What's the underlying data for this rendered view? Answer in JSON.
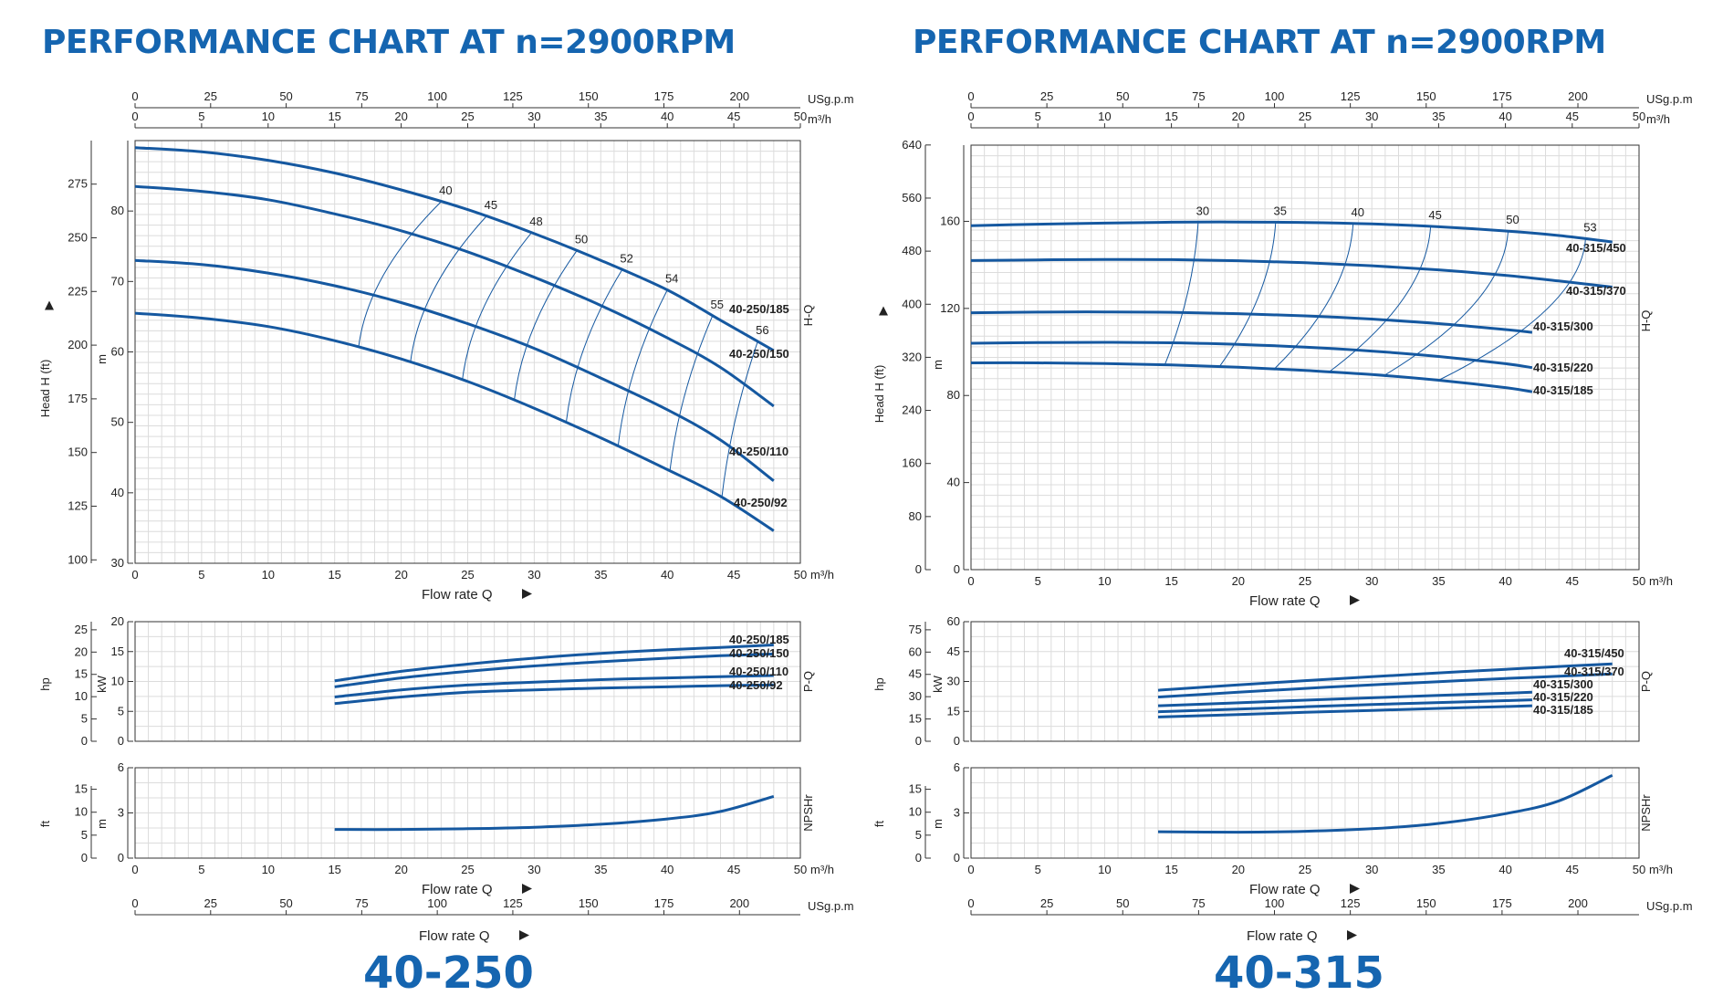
{
  "titles": {
    "left": "PERFORMANCE CHART AT n=2900RPM",
    "right": "PERFORMANCE CHART AT n=2900RPM"
  },
  "models": {
    "left": "40-250",
    "right": "40-315"
  },
  "colors": {
    "curve": "#1558a0",
    "grid": "#dcdcdc",
    "title": "#1565b0"
  },
  "chart_data": [
    {
      "type": "line",
      "pump": "40-250",
      "flow_m3h_ticks": [
        0,
        5,
        10,
        15,
        20,
        25,
        30,
        35,
        40,
        45,
        50
      ],
      "flow_usgpm_ticks": [
        0,
        25,
        50,
        75,
        100,
        125,
        150,
        175,
        200
      ],
      "x_unit": "m³/h",
      "usgpm_unit": "USg.p.m",
      "xlabel": "Flow rate Q",
      "xlim": [
        0,
        50
      ],
      "head": {
        "ylabel_ft": "Head H (ft)",
        "ylabel_m": "m",
        "side_label": "H-Q",
        "ylim_m": [
          30,
          90
        ],
        "m_ticks": [
          30,
          40,
          50,
          60,
          70,
          80
        ],
        "ft_ticks": [
          100,
          125,
          150,
          175,
          200,
          225,
          250,
          275
        ],
        "series": [
          {
            "name": "40-250/185",
            "x": [
              0,
              5,
              10,
              15,
              20,
              25,
              30,
              35,
              40,
              44,
              48
            ],
            "y": [
              89,
              88.4,
              87.2,
              85.4,
              83,
              80.2,
              76.8,
              73,
              68.8,
              64.5,
              60.2
            ]
          },
          {
            "name": "40-250/150",
            "x": [
              0,
              5,
              10,
              15,
              20,
              25,
              30,
              35,
              40,
              44,
              48
            ],
            "y": [
              83.5,
              82.8,
              81.6,
              79.6,
              77.2,
              74.2,
              70.6,
              66.6,
              62,
              57.8,
              52.3
            ]
          },
          {
            "name": "40-250/110",
            "x": [
              0,
              5,
              10,
              15,
              20,
              25,
              30,
              35,
              40,
              44,
              48
            ],
            "y": [
              73,
              72.4,
              71.2,
              69.4,
              67,
              64,
              60.5,
              56.3,
              51.8,
              47.5,
              41.7
            ]
          },
          {
            "name": "40-250/92",
            "x": [
              0,
              5,
              10,
              15,
              20,
              25,
              30,
              35,
              40,
              44,
              48
            ],
            "y": [
              65.5,
              64.8,
              63.6,
              61.6,
              59,
              55.8,
              52,
              47.8,
              43.3,
              39.5,
              34.6
            ]
          }
        ],
        "efficiency_labels": [
          "40",
          "45",
          "48",
          "50",
          "52",
          "54",
          "55",
          "56"
        ]
      },
      "power": {
        "ylabel_hp": "hp",
        "ylabel_kw": "kW",
        "side_label": "P-Q",
        "ylim_kw": [
          0,
          20
        ],
        "kw_ticks": [
          0,
          5,
          10,
          15,
          20
        ],
        "hp_ticks": [
          0,
          5,
          10,
          15,
          20,
          25
        ],
        "series": [
          {
            "name": "40-250/185",
            "x": [
              15,
              20,
              25,
              30,
              35,
              40,
              44,
              48
            ],
            "y": [
              10.1,
              11.7,
              12.9,
              13.9,
              14.7,
              15.3,
              15.7,
              16.1
            ]
          },
          {
            "name": "40-250/150",
            "x": [
              15,
              20,
              25,
              30,
              35,
              40,
              44,
              48
            ],
            "y": [
              9.1,
              10.6,
              11.7,
              12.6,
              13.3,
              13.9,
              14.3,
              14.6
            ]
          },
          {
            "name": "40-250/110",
            "x": [
              15,
              20,
              25,
              30,
              35,
              40,
              44,
              48
            ],
            "y": [
              7.4,
              8.6,
              9.4,
              9.9,
              10.3,
              10.6,
              10.8,
              11
            ]
          },
          {
            "name": "40-250/92",
            "x": [
              15,
              20,
              25,
              30,
              35,
              40,
              44,
              48
            ],
            "y": [
              6.3,
              7.4,
              8.2,
              8.6,
              8.9,
              9.1,
              9.3,
              9.4
            ]
          }
        ]
      },
      "npsh": {
        "ylabel_ft": "ft",
        "ylabel_m": "m",
        "side_label": "NPSHr",
        "ylim_m": [
          0,
          6
        ],
        "m_ticks": [
          0,
          3,
          6
        ],
        "ft_ticks": [
          0,
          5,
          10,
          15
        ],
        "series": [
          {
            "name": "NPSHr",
            "x": [
              15,
              20,
              25,
              30,
              35,
              40,
              44,
              48
            ],
            "y": [
              1.9,
              1.9,
              1.95,
              2.05,
              2.25,
              2.6,
              3.1,
              4.1
            ]
          }
        ]
      }
    },
    {
      "type": "line",
      "pump": "40-315",
      "flow_m3h_ticks": [
        0,
        5,
        10,
        15,
        20,
        25,
        30,
        35,
        40,
        45,
        50
      ],
      "flow_usgpm_ticks": [
        0,
        25,
        50,
        75,
        100,
        125,
        150,
        175,
        200
      ],
      "x_unit": "m³/h",
      "usgpm_unit": "USg.p.m",
      "xlabel": "Flow rate Q",
      "xlim": [
        0,
        50
      ],
      "head": {
        "ylabel_ft": "Head H (ft)",
        "ylabel_m": "m",
        "side_label": "H-Q",
        "ylim_m": [
          0,
          195
        ],
        "m_ticks": [
          0,
          40,
          80,
          120,
          160
        ],
        "ft_ticks": [
          0,
          80,
          160,
          240,
          320,
          400,
          480,
          560,
          640
        ],
        "series": [
          {
            "name": "40-315/450",
            "x": [
              0,
              5,
              10,
              15,
              20,
              25,
              30,
              35,
              40,
              44,
              48
            ],
            "y": [
              158,
              158.7,
              159.2,
              159.6,
              159.7,
              159.5,
              158.8,
              157.5,
              155.6,
              153.5,
              150.5
            ]
          },
          {
            "name": "40-315/370",
            "x": [
              0,
              5,
              10,
              15,
              20,
              25,
              30,
              35,
              40,
              44,
              48
            ],
            "y": [
              142,
              142.3,
              142.5,
              142.4,
              141.9,
              141,
              139.6,
              137.7,
              135.2,
              132.6,
              129.8
            ]
          },
          {
            "name": "40-315/300",
            "x": [
              0,
              5,
              10,
              15,
              20,
              25,
              30,
              35,
              40,
              42
            ],
            "y": [
              118,
              118.3,
              118.4,
              118.2,
              117.6,
              116.6,
              115.1,
              113,
              110.3,
              109
            ]
          },
          {
            "name": "40-315/220",
            "x": [
              0,
              5,
              10,
              15,
              20,
              25,
              30,
              35,
              40,
              42
            ],
            "y": [
              104,
              104.3,
              104.4,
              104.2,
              103.5,
              102.2,
              100.4,
              97.9,
              94.6,
              92.8
            ]
          },
          {
            "name": "40-315/185",
            "x": [
              0,
              5,
              10,
              15,
              20,
              25,
              30,
              35,
              40,
              42
            ],
            "y": [
              95,
              95,
              94.7,
              94,
              93,
              91.5,
              89.6,
              87,
              83.6,
              81.7
            ]
          }
        ],
        "efficiency_labels": [
          "30",
          "35",
          "40",
          "45",
          "50",
          "53"
        ]
      },
      "power": {
        "ylabel_hp": "hp",
        "ylabel_kw": "kW",
        "side_label": "P-Q",
        "ylim_kw": [
          0,
          60
        ],
        "kw_ticks": [
          0,
          15,
          30,
          45,
          60
        ],
        "hp_ticks": [
          0,
          15,
          30,
          45,
          60,
          75
        ],
        "series": [
          {
            "name": "40-315/450",
            "x": [
              14,
              20,
              25,
              30,
              35,
              40,
              44,
              48
            ],
            "y": [
              25.6,
              28.3,
              30.4,
              32.4,
              34.3,
              36.1,
              37.5,
              38.8
            ]
          },
          {
            "name": "40-315/370",
            "x": [
              14,
              20,
              25,
              30,
              35,
              40,
              44,
              48
            ],
            "y": [
              22.2,
              24.6,
              26.5,
              28.3,
              29.9,
              31.5,
              32.6,
              33.8
            ]
          },
          {
            "name": "40-315/300",
            "x": [
              14,
              20,
              25,
              30,
              35,
              40,
              42
            ],
            "y": [
              17.8,
              19.3,
              20.6,
              21.8,
              23,
              24.1,
              24.6
            ]
          },
          {
            "name": "40-315/220",
            "x": [
              14,
              20,
              25,
              30,
              35,
              40,
              42
            ],
            "y": [
              14.8,
              16.1,
              17.3,
              18.4,
              19.4,
              20.4,
              20.8
            ]
          },
          {
            "name": "40-315/185",
            "x": [
              14,
              20,
              25,
              30,
              35,
              40,
              42
            ],
            "y": [
              12.2,
              13.4,
              14.5,
              15.5,
              16.5,
              17.4,
              17.8
            ]
          }
        ]
      },
      "npsh": {
        "ylabel_ft": "ft",
        "ylabel_m": "m",
        "side_label": "NPSHr",
        "ylim_m": [
          0,
          6
        ],
        "m_ticks": [
          0,
          3,
          6
        ],
        "ft_ticks": [
          0,
          5,
          10,
          15
        ],
        "series": [
          {
            "name": "NPSHr",
            "x": [
              14,
              20,
              25,
              30,
              35,
              40,
              44,
              48
            ],
            "y": [
              1.75,
              1.72,
              1.78,
              1.95,
              2.3,
              2.95,
              3.8,
              5.5
            ]
          }
        ]
      }
    }
  ]
}
